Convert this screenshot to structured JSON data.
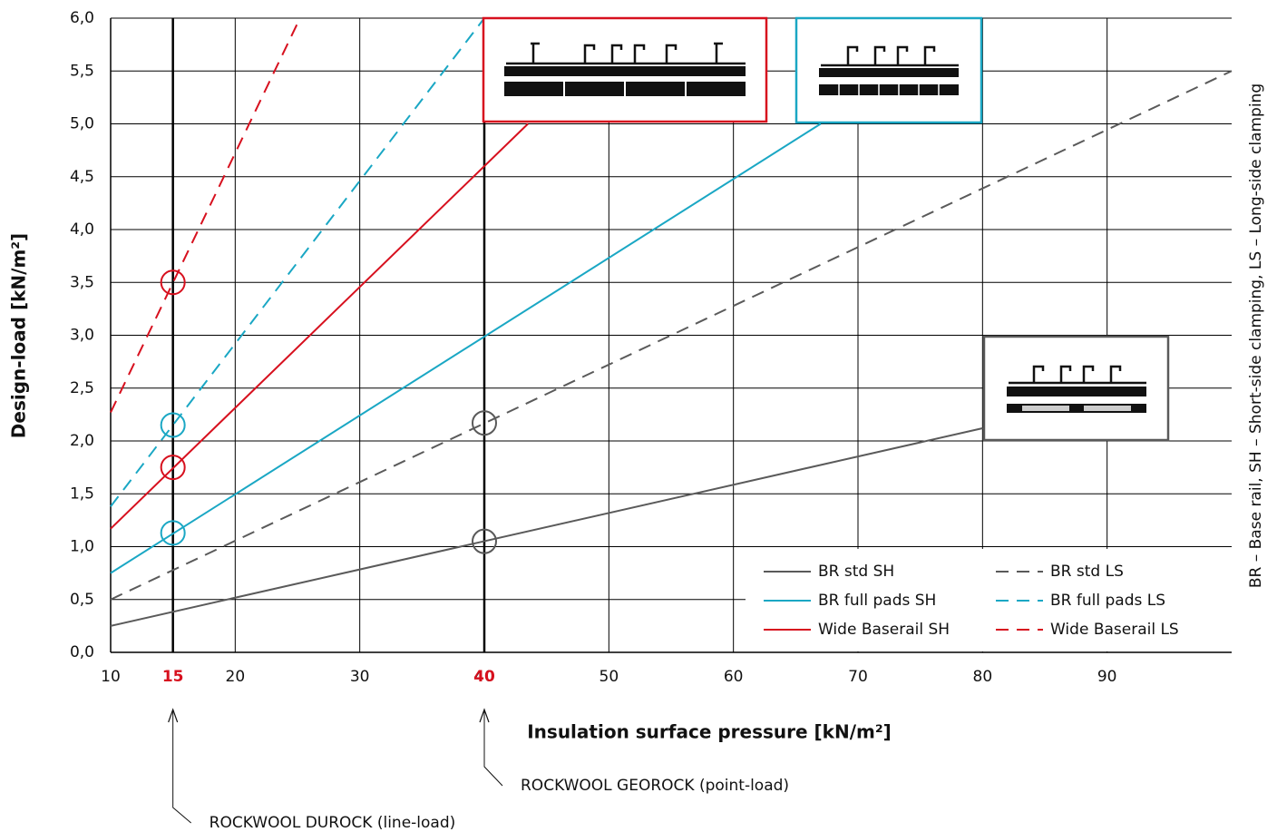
{
  "chart_data": {
    "type": "line",
    "xlabel": "Insulation surface pressure [kN/m²]",
    "ylabel": "Design-load [kN/m²]",
    "side_note": "BR – Base rail, SH – Short-side clamping, LS – Long-side clamping",
    "xlim": [
      10,
      100
    ],
    "ylim": [
      0,
      6
    ],
    "xticks": [
      10,
      20,
      30,
      40,
      50,
      60,
      70,
      80,
      90
    ],
    "highlight_xticks": [
      15,
      40
    ],
    "highlight_color": "#d7101e",
    "yticks": [
      {
        "value": 0,
        "label": "0,0"
      },
      {
        "value": 0.5,
        "label": "0,5"
      },
      {
        "value": 1,
        "label": "1,0"
      },
      {
        "value": 1.5,
        "label": "1,5"
      },
      {
        "value": 2,
        "label": "2,0"
      },
      {
        "value": 2.5,
        "label": "2,5"
      },
      {
        "value": 3,
        "label": "3,0"
      },
      {
        "value": 3.5,
        "label": "3,5"
      },
      {
        "value": 4,
        "label": "4,0"
      },
      {
        "value": 4.5,
        "label": "4,5"
      },
      {
        "value": 5,
        "label": "5,0"
      },
      {
        "value": 5.5,
        "label": "5,5"
      },
      {
        "value": 6,
        "label": "6,0"
      }
    ],
    "grid": true,
    "legend": "lower right",
    "series": [
      {
        "name": "BR std SH",
        "color": "#5a5a5a",
        "dashed": false,
        "x": [
          10,
          80
        ],
        "values": [
          0.25,
          2.12
        ]
      },
      {
        "name": "BR std LS",
        "color": "#5a5a5a",
        "dashed": true,
        "x": [
          10,
          100
        ],
        "values": [
          0.5,
          5.5
        ]
      },
      {
        "name": "BR full pads SH",
        "color": "#1aa7c4",
        "dashed": false,
        "x": [
          10,
          67
        ],
        "values": [
          0.75,
          5.0
        ]
      },
      {
        "name": "BR full pads LS",
        "color": "#1aa7c4",
        "dashed": true,
        "x": [
          10,
          40
        ],
        "values": [
          1.38,
          6.0
        ]
      },
      {
        "name": "Wide Baserail SH",
        "color": "#d7101e",
        "dashed": false,
        "x": [
          10,
          43.5
        ],
        "values": [
          1.17,
          5.0
        ]
      },
      {
        "name": "Wide Baserail LS",
        "color": "#d7101e",
        "dashed": true,
        "x": [
          10,
          25.2
        ],
        "values": [
          2.27,
          6.0
        ]
      }
    ],
    "circles": {
      "x": [
        15,
        15,
        15,
        15,
        40,
        40
      ],
      "values": [
        3.5,
        2.15,
        1.75,
        1.13,
        2.17,
        1.05
      ],
      "colors": [
        "#d7101e",
        "#1aa7c4",
        "#d7101e",
        "#1aa7c4",
        "#5a5a5a",
        "#5a5a5a"
      ]
    },
    "annotations": [
      {
        "text": "ROCKWOOL DUROCK (line-load)",
        "x": 15
      },
      {
        "text": "ROCKWOOL GEOROCK (point-load)",
        "x": 40
      }
    ]
  }
}
